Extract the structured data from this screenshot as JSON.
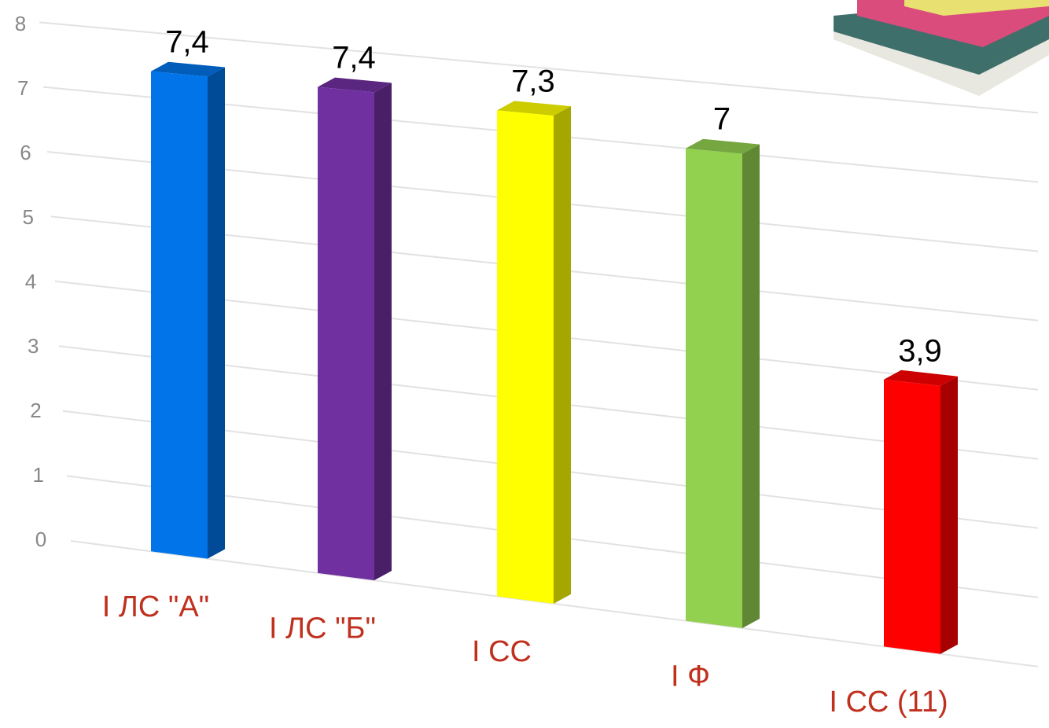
{
  "chart_data": {
    "type": "bar3d",
    "categories": [
      "I ЛС \"А\"",
      "I ЛС \"Б\"",
      "I СС",
      "I Ф",
      "I СС (11)"
    ],
    "values": [
      7.4,
      7.4,
      7.3,
      7,
      3.9
    ],
    "value_labels": [
      "7,4",
      "7,4",
      "7,3",
      "7",
      "3,9"
    ],
    "colors": [
      "#0074e8",
      "#7030a0",
      "#ffff00",
      "#92d050",
      "#ff0000"
    ],
    "ylim": [
      0,
      8
    ],
    "yticks": [
      0,
      1,
      2,
      3,
      4,
      5,
      6,
      7,
      8
    ],
    "grid": true
  }
}
